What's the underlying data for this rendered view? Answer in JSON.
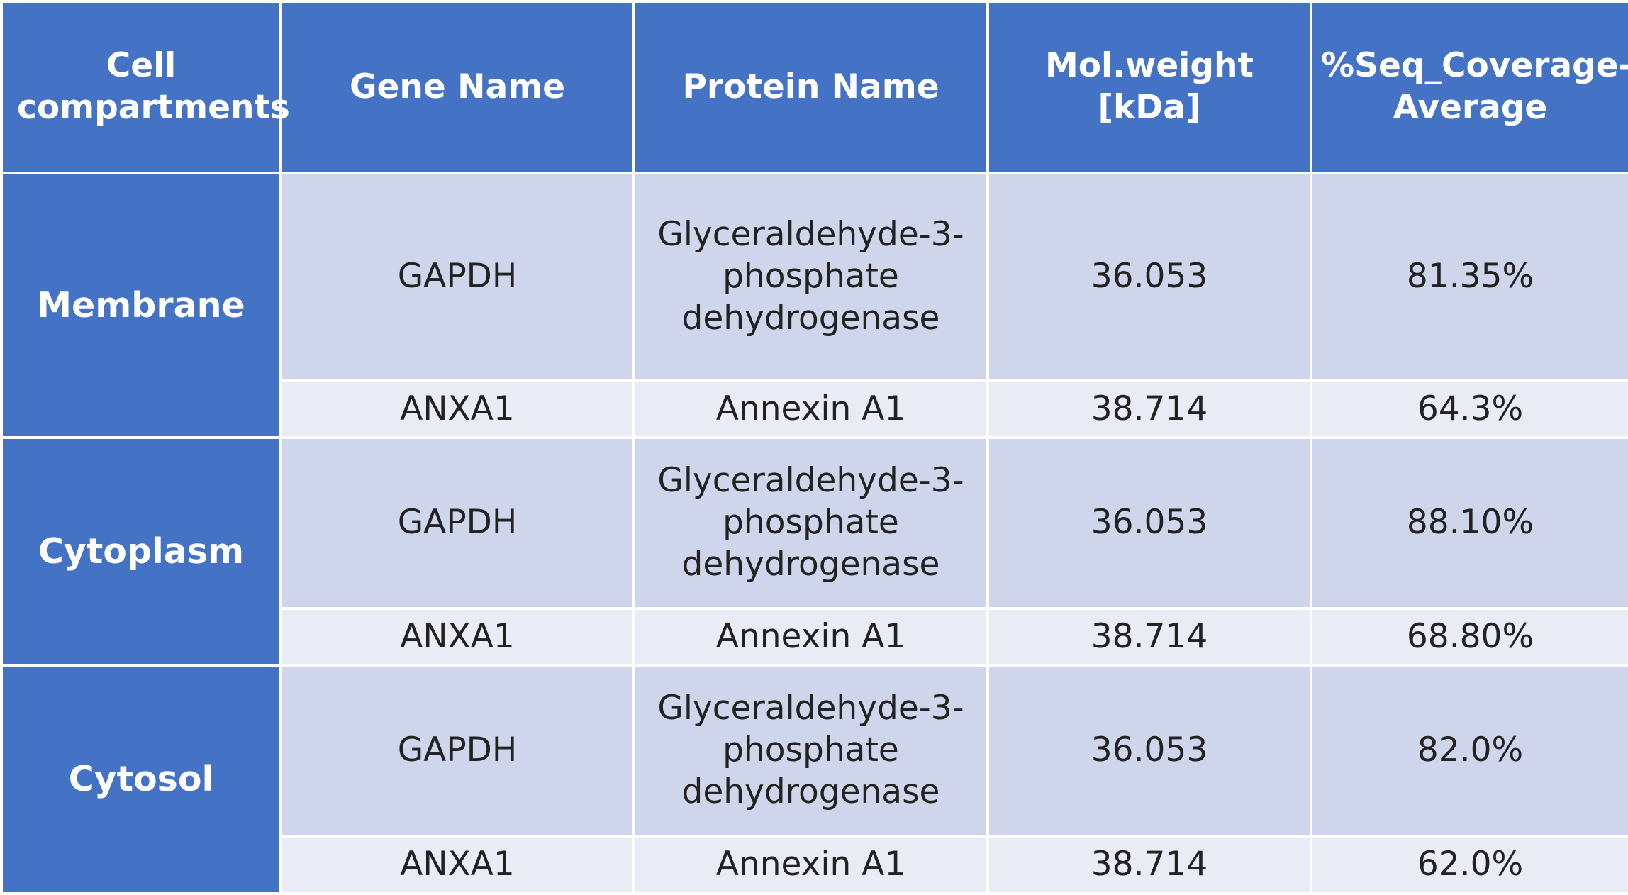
{
  "headers": [
    "Cell compartments",
    "Gene Name",
    "Protein Name",
    "Mol.weight [kDa]",
    "%Seq_Coverage-Average"
  ],
  "groups": [
    {
      "compartment": "Membrane",
      "rows": [
        {
          "gene": "GAPDH",
          "protein": "Glyceraldehyde-3-phosphate dehydrogenase",
          "mw": "36.053",
          "coverage": "81.35%"
        },
        {
          "gene": "ANXA1",
          "protein": "Annexin A1",
          "mw": "38.714",
          "coverage": "64.3%"
        }
      ]
    },
    {
      "compartment": "Cytoplasm",
      "rows": [
        {
          "gene": "GAPDH",
          "protein": "Glyceraldehyde-3-phosphate dehydrogenase",
          "mw": "36.053",
          "coverage": "88.10%"
        },
        {
          "gene": "ANXA1",
          "protein": "Annexin A1",
          "mw": "38.714",
          "coverage": "68.80%"
        }
      ]
    },
    {
      "compartment": "Cytosol",
      "rows": [
        {
          "gene": "GAPDH",
          "protein": "Glyceraldehyde-3-phosphate dehydrogenase",
          "mw": "36.053",
          "coverage": "82.0%"
        },
        {
          "gene": "ANXA1",
          "protein": "Annexin A1",
          "mw": "38.714",
          "coverage": "62.0%"
        }
      ]
    }
  ]
}
